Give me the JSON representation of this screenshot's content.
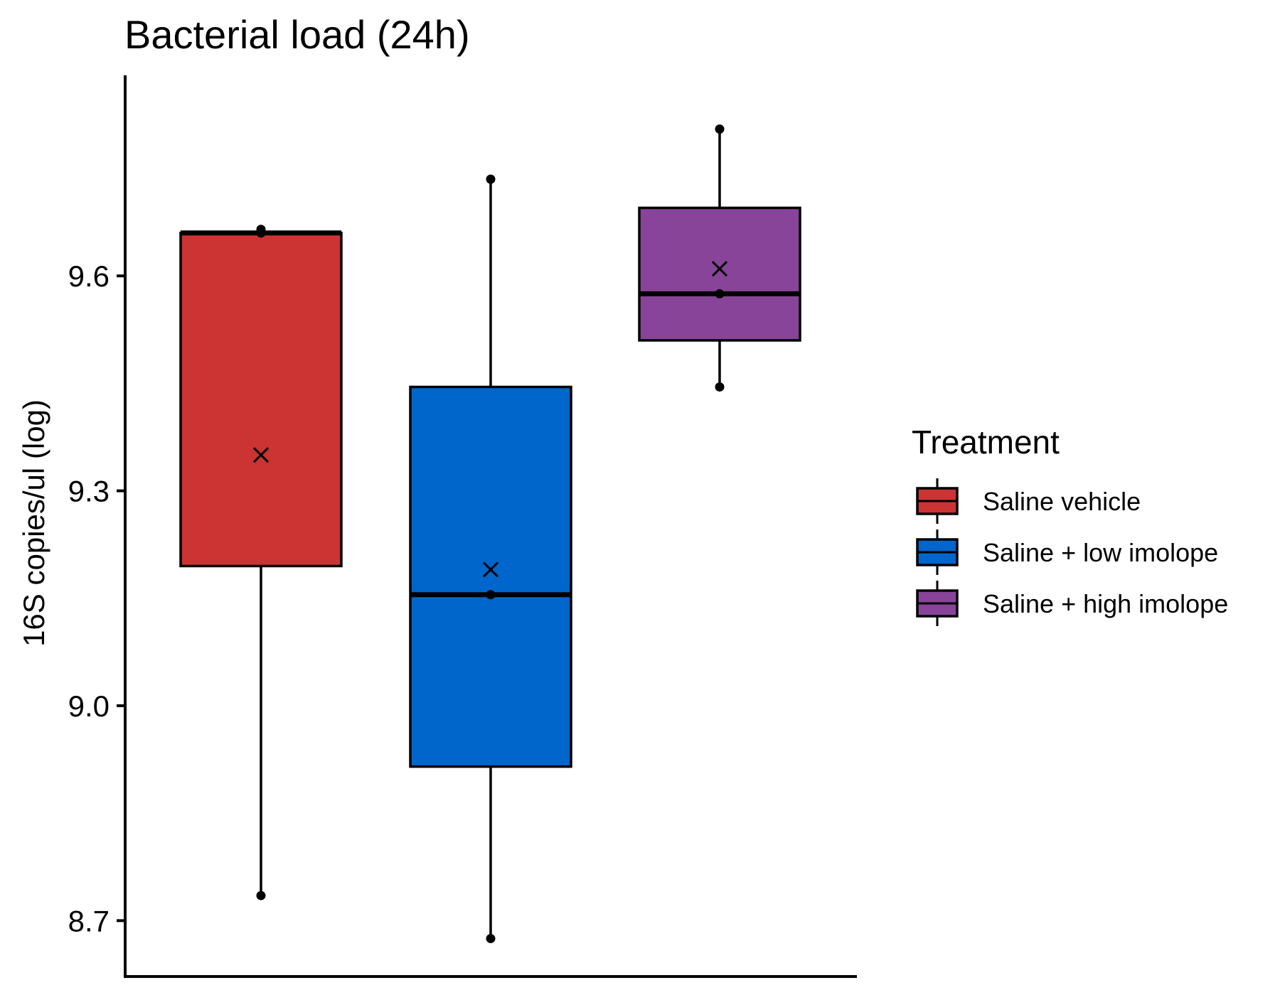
{
  "chart_data": {
    "type": "box",
    "title": "Bacterial load (24h)",
    "xlabel": "",
    "ylabel": "16S copies/ul (log)",
    "ylim": [
      8.62,
      9.88
    ],
    "yticks": [
      8.7,
      9.0,
      9.3,
      9.6
    ],
    "ytick_labels": [
      "8.7",
      "9.0",
      "9.3",
      "9.6"
    ],
    "legend": {
      "title": "Treatment",
      "position": "right"
    },
    "series": [
      {
        "name": "Saline vehicle",
        "color": "#CC3333",
        "min": 8.735,
        "q1": 9.195,
        "median": 9.66,
        "q3": 9.66,
        "max": 9.665,
        "mean": 9.35,
        "points": [
          8.735,
          9.66,
          9.665
        ]
      },
      {
        "name": "Saline + low imolope",
        "color": "#0066CC",
        "min": 8.675,
        "q1": 8.915,
        "median": 9.155,
        "q3": 9.445,
        "max": 9.735,
        "mean": 9.19,
        "points": [
          8.675,
          9.155,
          9.735
        ]
      },
      {
        "name": "Saline + high imolope",
        "color": "#884499",
        "min": 9.445,
        "q1": 9.51,
        "median": 9.575,
        "q3": 9.695,
        "max": 9.805,
        "mean": 9.61,
        "points": [
          9.445,
          9.575,
          9.805
        ]
      }
    ]
  }
}
